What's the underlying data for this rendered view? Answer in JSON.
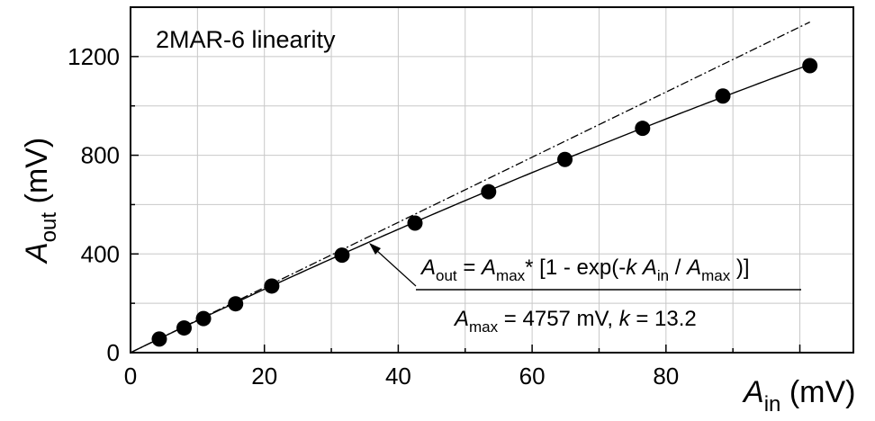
{
  "chart_data": {
    "type": "scatter",
    "title": "2MAR-6 linearity",
    "xlabel": {
      "main": "A",
      "sub": "in",
      "unit": " (mV)"
    },
    "ylabel": {
      "main": "A",
      "sub": "out",
      "unit": " (mV)"
    },
    "xlim": [
      0,
      108
    ],
    "ylim": [
      0,
      1400
    ],
    "xticks": [
      0,
      20,
      40,
      60,
      80
    ],
    "yticks": [
      0,
      400,
      800,
      1200
    ],
    "grid": true,
    "series": [
      {
        "kind": "points",
        "x": [
          4.3,
          8.0,
          10.9,
          15.7,
          21.1,
          31.6,
          42.5,
          53.5,
          64.9,
          76.5,
          88.5,
          101.5
        ],
        "y": [
          55,
          100,
          138,
          198,
          270,
          395,
          525,
          652,
          783,
          909,
          1040,
          1163
        ]
      },
      {
        "kind": "fit-line",
        "formula": "Aout = Amax*[1 - exp(-k Ain / Amax)]",
        "Amax": 4757,
        "k": 13.2,
        "style": "solid"
      },
      {
        "kind": "ideal-line",
        "slope": 13.2,
        "style": "dash-dot"
      }
    ],
    "annotation": {
      "formula_parts": [
        "A",
        "out",
        " = ",
        "A",
        "max",
        "* [1 - exp(-",
        "k",
        " ",
        "A",
        "in",
        " / ",
        "A",
        "max",
        " )]"
      ],
      "params_parts": [
        "A",
        "max",
        " = 4757 mV,  ",
        "k",
        " = 13.2"
      ]
    }
  }
}
